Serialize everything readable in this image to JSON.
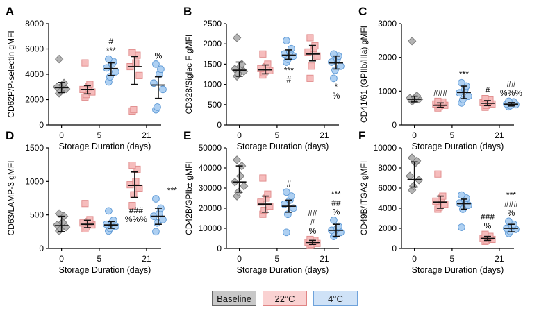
{
  "figure": {
    "legend": [
      {
        "label": "Baseline",
        "fill": "#c8c8c8",
        "border": "#666666"
      },
      {
        "label": "22°C",
        "fill": "#fad2d2",
        "border": "#e08484"
      },
      {
        "label": "4°C",
        "fill": "#cfe2f7",
        "border": "#6ea2db"
      }
    ],
    "colors": {
      "baseline_point": "#b4b4b4",
      "baseline_stroke": "#7a7a7a",
      "c22_point": "#f6bcbc",
      "c22_stroke": "#e08a8a",
      "c4_point": "#aed0f2",
      "c4_stroke": "#5f9ad6",
      "error_bar": "#111111"
    }
  },
  "chart_data": [
    {
      "panel": "A",
      "type": "scatter",
      "ylabel": "CD62P/P-selectin gMFI",
      "xlabel": "Storage Duration (days)",
      "ylim": [
        0,
        8000
      ],
      "yticks": [
        0,
        2000,
        4000,
        6000,
        8000
      ],
      "categories": [
        "0",
        "5",
        "21"
      ],
      "groups": [
        {
          "series": "Baseline",
          "cat": 0,
          "mean": 2950,
          "ci": [
            2550,
            3350
          ],
          "points": [
            2500,
            2700,
            2850,
            3000,
            3150,
            3300,
            5200
          ]
        },
        {
          "series": "22°C",
          "cat": 1,
          "mean": 2800,
          "ci": [
            2450,
            3100
          ],
          "points": [
            2200,
            2400,
            2600,
            2800,
            3000,
            3200,
            4900
          ]
        },
        {
          "series": "4°C",
          "cat": 1,
          "mean": 4450,
          "ci": [
            3900,
            4900
          ],
          "points": [
            3400,
            3800,
            4200,
            4500,
            4800,
            5000,
            5200
          ]
        },
        {
          "series": "22°C",
          "cat": 2,
          "mean": 4600,
          "ci": [
            3200,
            5400
          ],
          "points": [
            1100,
            1200,
            3900,
            4600,
            4900,
            5500,
            5700
          ]
        },
        {
          "series": "4°C",
          "cat": 2,
          "mean": 3150,
          "ci": [
            2100,
            3800
          ],
          "points": [
            1200,
            1400,
            2800,
            3300,
            4000,
            4400,
            4800
          ]
        }
      ],
      "annotations": [
        {
          "cat": 1,
          "series": "4°C",
          "lines": [
            "#",
            "***"
          ]
        },
        {
          "cat": 2,
          "series": "4°C",
          "lines": [
            "%"
          ]
        }
      ]
    },
    {
      "panel": "B",
      "type": "scatter",
      "ylabel": "CD328/Siglec F gMFI",
      "xlabel": "Storage Duration (days)",
      "ylim": [
        0,
        2500
      ],
      "yticks": [
        0,
        500,
        1000,
        1500,
        2000,
        2500
      ],
      "categories": [
        "0",
        "5",
        "21"
      ],
      "groups": [
        {
          "series": "Baseline",
          "cat": 0,
          "mean": 1350,
          "ci": [
            1200,
            1550
          ],
          "points": [
            1200,
            1260,
            1320,
            1380,
            1440,
            1500,
            2150
          ]
        },
        {
          "series": "22°C",
          "cat": 1,
          "mean": 1360,
          "ci": [
            1260,
            1480
          ],
          "points": [
            1230,
            1290,
            1340,
            1390,
            1440,
            1500,
            1750
          ]
        },
        {
          "series": "4°C",
          "cat": 1,
          "mean": 1720,
          "ci": [
            1620,
            1850
          ],
          "points": [
            1550,
            1620,
            1700,
            1750,
            1800,
            1880,
            2080
          ]
        },
        {
          "series": "22°C",
          "cat": 2,
          "mean": 1750,
          "ci": [
            1580,
            1960
          ],
          "points": [
            1150,
            1450,
            1700,
            1800,
            1880,
            1950,
            2150
          ]
        },
        {
          "series": "4°C",
          "cat": 2,
          "mean": 1530,
          "ci": [
            1380,
            1700
          ],
          "points": [
            1150,
            1350,
            1450,
            1550,
            1620,
            1700,
            1750
          ]
        }
      ],
      "annotations": [
        {
          "cat": 1,
          "series": "4°C",
          "lines": [
            "***",
            "#"
          ],
          "below": true
        },
        {
          "cat": 2,
          "series": "4°C",
          "lines": [
            "*",
            "%"
          ],
          "below": true
        }
      ]
    },
    {
      "panel": "C",
      "type": "scatter",
      "ylabel": "CD41/61 (GPIIb/IIIa) gMFI",
      "xlabel": "Storage Duration (days)",
      "ylim": [
        0,
        3000
      ],
      "yticks": [
        0,
        1000,
        2000,
        3000
      ],
      "categories": [
        "0",
        "5",
        "21"
      ],
      "groups": [
        {
          "series": "Baseline",
          "cat": 0,
          "mean": 760,
          "ci": [
            680,
            850
          ],
          "points": [
            700,
            730,
            760,
            790,
            820,
            860,
            2480
          ]
        },
        {
          "series": "22°C",
          "cat": 1,
          "mean": 580,
          "ci": [
            520,
            650
          ],
          "points": [
            500,
            540,
            580,
            620,
            650,
            680,
            700
          ]
        },
        {
          "series": "4°C",
          "cat": 1,
          "mean": 960,
          "ci": [
            780,
            1150
          ],
          "points": [
            650,
            750,
            850,
            950,
            1050,
            1150,
            1250
          ]
        },
        {
          "series": "22°C",
          "cat": 2,
          "mean": 640,
          "ci": [
            570,
            720
          ],
          "points": [
            520,
            580,
            620,
            660,
            700,
            740,
            780
          ]
        },
        {
          "series": "4°C",
          "cat": 2,
          "mean": 610,
          "ci": [
            560,
            660
          ],
          "points": [
            540,
            570,
            600,
            620,
            650,
            680,
            700
          ]
        }
      ],
      "annotations": [
        {
          "cat": 1,
          "series": "22°C",
          "lines": [
            "###"
          ]
        },
        {
          "cat": 1,
          "series": "4°C",
          "lines": [
            "***"
          ]
        },
        {
          "cat": 2,
          "series": "22°C",
          "lines": [
            "#"
          ]
        },
        {
          "cat": 2,
          "series": "4°C",
          "lines": [
            "##",
            "%%%"
          ]
        }
      ]
    },
    {
      "panel": "D",
      "type": "scatter",
      "ylabel": "CD63/LAMP-3 gMFI",
      "xlabel": "Storage Duration (days)",
      "ylim": [
        0,
        1500
      ],
      "yticks": [
        0,
        500,
        1000,
        1500
      ],
      "categories": [
        "0",
        "5",
        "21"
      ],
      "groups": [
        {
          "series": "Baseline",
          "cat": 0,
          "mean": 340,
          "ci": [
            250,
            480
          ],
          "points": [
            260,
            290,
            320,
            350,
            390,
            480,
            520
          ]
        },
        {
          "series": "22°C",
          "cat": 1,
          "mean": 360,
          "ci": [
            310,
            420
          ],
          "points": [
            290,
            320,
            350,
            380,
            400,
            430,
            670
          ]
        },
        {
          "series": "4°C",
          "cat": 1,
          "mean": 350,
          "ci": [
            300,
            400
          ],
          "points": [
            260,
            300,
            330,
            360,
            390,
            420,
            560
          ]
        },
        {
          "series": "22°C",
          "cat": 2,
          "mean": 940,
          "ci": [
            760,
            1140
          ],
          "points": [
            640,
            800,
            900,
            950,
            1000,
            1180,
            1240
          ]
        },
        {
          "series": "4°C",
          "cat": 2,
          "mean": 480,
          "ci": [
            360,
            600
          ],
          "points": [
            250,
            380,
            430,
            480,
            520,
            600,
            740
          ]
        }
      ],
      "annotations": [
        {
          "cat": 2,
          "series": "4°C",
          "lines": [
            "***"
          ],
          "x_offset": 20
        },
        {
          "cat": 2,
          "series": "4°C",
          "lines": [
            "###",
            "%%%"
          ],
          "y_value": 500,
          "x_offset": -32
        }
      ]
    },
    {
      "panel": "E",
      "type": "scatter",
      "ylabel": "CD42B/GPIb± gMFI",
      "xlabel": "Storage Duration (days)",
      "ylim": [
        0,
        50000
      ],
      "yticks": [
        0,
        10000,
        20000,
        30000,
        40000,
        50000
      ],
      "categories": [
        "0",
        "5",
        "21"
      ],
      "groups": [
        {
          "series": "Baseline",
          "cat": 0,
          "mean": 33000,
          "ci": [
            28000,
            41000
          ],
          "points": [
            26000,
            28000,
            31000,
            33000,
            36000,
            41000,
            44000
          ]
        },
        {
          "series": "22°C",
          "cat": 1,
          "mean": 22000,
          "ci": [
            18000,
            26000
          ],
          "points": [
            17000,
            19000,
            21000,
            23000,
            25000,
            27000,
            35000
          ]
        },
        {
          "series": "4°C",
          "cat": 1,
          "mean": 21000,
          "ci": [
            18000,
            24000
          ],
          "points": [
            8000,
            17000,
            20000,
            22000,
            24000,
            26000,
            28000
          ]
        },
        {
          "series": "22°C",
          "cat": 2,
          "mean": 3000,
          "ci": [
            2000,
            4000
          ],
          "points": [
            1500,
            2000,
            2500,
            3000,
            3500,
            4000,
            4500
          ]
        },
        {
          "series": "4°C",
          "cat": 2,
          "mean": 9000,
          "ci": [
            6000,
            12000
          ],
          "points": [
            6000,
            7000,
            8000,
            9000,
            10000,
            11000,
            14000
          ]
        }
      ],
      "annotations": [
        {
          "cat": 1,
          "series": "4°C",
          "lines": [
            "#"
          ]
        },
        {
          "cat": 2,
          "series": "22°C",
          "lines": [
            "##",
            "#",
            "%"
          ]
        },
        {
          "cat": 2,
          "series": "4°C",
          "lines": [
            "***",
            "##",
            "%"
          ]
        }
      ]
    },
    {
      "panel": "F",
      "type": "scatter",
      "ylabel": "CD49B/ITGA2 gMFI",
      "xlabel": "Storage Duration (days)",
      "ylim": [
        0,
        10000
      ],
      "yticks": [
        0,
        2000,
        4000,
        6000,
        8000,
        10000
      ],
      "categories": [
        "0",
        "5",
        "21"
      ],
      "groups": [
        {
          "series": "Baseline",
          "cat": 0,
          "mean": 6850,
          "ci": [
            6100,
            8600
          ],
          "points": [
            5800,
            6200,
            6800,
            7200,
            8500,
            8700,
            9000
          ]
        },
        {
          "series": "22°C",
          "cat": 1,
          "mean": 4600,
          "ci": [
            4000,
            5200
          ],
          "points": [
            3900,
            4100,
            4400,
            4700,
            5000,
            5200,
            7400
          ]
        },
        {
          "series": "4°C",
          "cat": 1,
          "mean": 4450,
          "ci": [
            3900,
            4900
          ],
          "points": [
            2100,
            3900,
            4300,
            4500,
            4800,
            5000,
            5300
          ]
        },
        {
          "series": "22°C",
          "cat": 2,
          "mean": 1000,
          "ci": [
            800,
            1200
          ],
          "points": [
            700,
            800,
            900,
            1000,
            1100,
            1200,
            1400
          ]
        },
        {
          "series": "4°C",
          "cat": 2,
          "mean": 2000,
          "ci": [
            1650,
            2400
          ],
          "points": [
            1500,
            1700,
            1900,
            2000,
            2200,
            2400,
            2700
          ]
        }
      ],
      "annotations": [
        {
          "cat": 2,
          "series": "22°C",
          "lines": [
            "###",
            "%"
          ]
        },
        {
          "cat": 2,
          "series": "4°C",
          "lines": [
            "***",
            "###",
            "%"
          ]
        }
      ]
    }
  ]
}
